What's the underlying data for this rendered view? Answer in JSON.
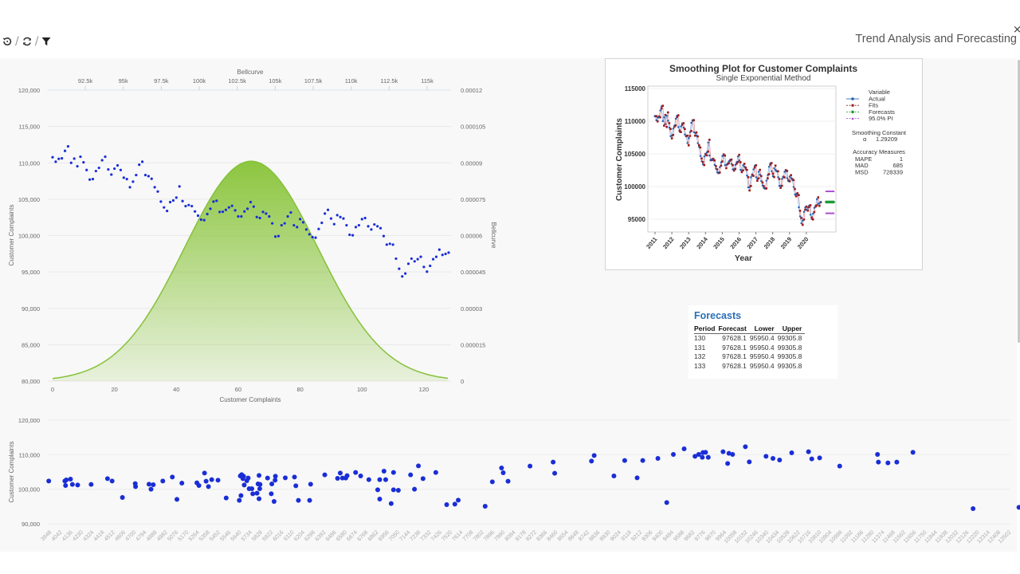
{
  "toolbar": {
    "icons": [
      "history-icon",
      "refresh-icon",
      "filter-icon"
    ],
    "separator": "/"
  },
  "header": {
    "title": "Trend Analysis and Forecasting",
    "close": "×"
  },
  "colors": {
    "points": "#1a2ed6",
    "bell": "#8cc63f",
    "actual": "#1f5fb4",
    "fits": "#9b1b1b",
    "forecasts": "#1f9a3a",
    "pi": "#a23cc8",
    "forecast_title": "#2a6fb5"
  },
  "chart_data": [
    {
      "type": "scatter",
      "xlabel": "Customer Complaints",
      "ylabel": "Customer Complaints",
      "y2label": "Bellcurve",
      "x2label": "Bellcurve",
      "xlim": [
        0,
        128
      ],
      "ylim": [
        80000,
        120000
      ],
      "y2lim": [
        0,
        0.00012
      ],
      "x2lim": [
        90350,
        116500
      ],
      "x_ticks": [
        "0",
        "20",
        "40",
        "60",
        "80",
        "100",
        "120"
      ],
      "y_ticks": [
        "120,000",
        "115,000",
        "110,000",
        "105,000",
        "100,000",
        "95,000",
        "90,000",
        "85,000",
        "80,000"
      ],
      "y2_ticks": [
        "0.00012",
        "0.000105",
        "0.00009",
        "0.000075",
        "0.00006",
        "0.000045",
        "0.00003",
        "0.000015",
        "0"
      ],
      "x2_ticks": [
        "92.5k",
        "95k",
        "97.5k",
        "100k",
        "102.5k",
        "105k",
        "107.5k",
        "110k",
        "112.5k",
        "115k"
      ],
      "grid": true,
      "bellcurve": {
        "type": "area",
        "mean": 103460,
        "sd": 4400
      },
      "values": [
        110770,
        110150,
        110550,
        110620,
        111640,
        112260,
        110000,
        110580,
        109530,
        110840,
        110070,
        109010,
        107700,
        107770,
        108870,
        109310,
        110360,
        110840,
        109090,
        108390,
        109200,
        109640,
        109010,
        107960,
        107770,
        106640,
        107410,
        108320,
        109740,
        110150,
        108320,
        108170,
        107810,
        106640,
        106060,
        104670,
        103870,
        103390,
        104600,
        104820,
        105220,
        106750,
        104740,
        104050,
        104200,
        104050,
        103320,
        102740,
        102190,
        102120,
        102960,
        103690,
        104670,
        104780,
        103250,
        103280,
        103540,
        103870,
        104090,
        103470,
        102630,
        102630,
        103320,
        103690,
        104600,
        103980,
        102550,
        102410,
        103250,
        103030,
        102630,
        101680,
        99860,
        99930,
        101420,
        101680,
        102630,
        103180,
        101420,
        101170,
        102260,
        101820,
        100840,
        100180,
        99780,
        99710,
        100910,
        101750,
        103030,
        103540,
        102340,
        101570,
        102810,
        102550,
        102340,
        101420,
        100110,
        100040,
        101170,
        101420,
        102260,
        102410,
        101280,
        100840,
        101530,
        101280,
        101020,
        99930,
        98760,
        98870,
        98760,
        96830,
        95440,
        94380,
        94780,
        96130,
        96830,
        96460,
        96750,
        97080,
        95690,
        95040,
        95840,
        96750,
        97080,
        98070,
        97340,
        97480,
        97660
      ]
    },
    {
      "type": "line",
      "title": "Smoothing Plot for Customer Complaints",
      "subtitle": "Single Exponential Method",
      "xlabel": "Year",
      "ylabel": "Customer Complaints",
      "y_ticks": [
        "115000",
        "110000",
        "105000",
        "100000",
        "95000"
      ],
      "x_ticks": [
        "2011",
        "2012",
        "2013",
        "2014",
        "2015",
        "2016",
        "2017",
        "2018",
        "2019",
        "2020"
      ],
      "ylim": [
        95000,
        115000
      ],
      "legend": {
        "title": "Variable",
        "entries": [
          "Actual",
          "Fits",
          "Forecasts",
          "95.0% PI"
        ],
        "placement": "right"
      },
      "smoothing": {
        "label": "Smoothing Constant",
        "symbol": "α",
        "value": "1.29209"
      },
      "accuracy": {
        "label": "Accuracy Measures",
        "rows": [
          [
            "MAPE",
            "1"
          ],
          [
            "MAD",
            "685"
          ],
          [
            "MSD",
            "728339"
          ]
        ]
      },
      "forecast": 97628.1,
      "lower": 95950.4,
      "upper": 99305.8
    },
    {
      "type": "scatter",
      "ylabel": "Customer Complaints",
      "ylim": [
        90000,
        120000
      ],
      "xlim": [
        3948,
        12502
      ],
      "y_ticks": [
        "120,000",
        "110,000",
        "100,000",
        "90,000"
      ],
      "x_ticks": [
        "3948",
        "4042",
        "4136",
        "4230",
        "4324",
        "4418",
        "4512",
        "4606",
        "4700",
        "4794",
        "4888",
        "4982",
        "5076",
        "5170",
        "5264",
        "5358",
        "5452",
        "5546",
        "5640",
        "5734",
        "5828",
        "5922",
        "6016",
        "6110",
        "6204",
        "6298",
        "6392",
        "6486",
        "6580",
        "6674",
        "6768",
        "6862",
        "6956",
        "7050",
        "7144",
        "7238",
        "7332",
        "7426",
        "7520",
        "7614",
        "7708",
        "7802",
        "7896",
        "7990",
        "8084",
        "8178",
        "8272",
        "8366",
        "8460",
        "8554",
        "8648",
        "8742",
        "8836",
        "8930",
        "9024",
        "9118",
        "9212",
        "9306",
        "9400",
        "9494",
        "9588",
        "9682",
        "9776",
        "9870",
        "9964",
        "10058",
        "10152",
        "10246",
        "10340",
        "10434",
        "10528",
        "10622",
        "10716",
        "10810",
        "10904",
        "10998",
        "11092",
        "11186",
        "11280",
        "11374",
        "11468",
        "11562",
        "11656",
        "11750",
        "11844",
        "11938",
        "12032",
        "12126",
        "12220",
        "12314",
        "12408",
        "12502"
      ],
      "points": [
        [
          3942,
          102385
        ],
        [
          4086,
          102385
        ],
        [
          4098,
          102690
        ],
        [
          4092,
          101080
        ],
        [
          4136,
          102920
        ],
        [
          4153,
          101380
        ],
        [
          4200,
          101230
        ],
        [
          4320,
          101380
        ],
        [
          4466,
          103080
        ],
        [
          4507,
          102385
        ],
        [
          4599,
          97620
        ],
        [
          4713,
          101620
        ],
        [
          4716,
          100770
        ],
        [
          4836,
          101460
        ],
        [
          4854,
          100000
        ],
        [
          4874,
          101310
        ],
        [
          4959,
          102385
        ],
        [
          5044,
          103540
        ],
        [
          5085,
          97080
        ],
        [
          5129,
          101770
        ],
        [
          5263,
          101850
        ],
        [
          5281,
          101080
        ],
        [
          5331,
          104690
        ],
        [
          5345,
          102310
        ],
        [
          5366,
          100770
        ],
        [
          5395,
          102770
        ],
        [
          5451,
          102620
        ],
        [
          5524,
          97460
        ],
        [
          5641,
          96770
        ],
        [
          5650,
          103850
        ],
        [
          5656,
          98150
        ],
        [
          5662,
          104230
        ],
        [
          5673,
          103080
        ],
        [
          5679,
          103770
        ],
        [
          5685,
          101230
        ],
        [
          5708,
          102460
        ],
        [
          5720,
          103230
        ],
        [
          5729,
          100150
        ],
        [
          5753,
          100150
        ],
        [
          5761,
          98690
        ],
        [
          5799,
          98850
        ],
        [
          5808,
          101540
        ],
        [
          5817,
          104000
        ],
        [
          5817,
          97230
        ],
        [
          5826,
          101380
        ],
        [
          5823,
          100150
        ],
        [
          5893,
          103230
        ],
        [
          5926,
          98690
        ],
        [
          5931,
          101540
        ],
        [
          5951,
          96460
        ],
        [
          5960,
          102620
        ],
        [
          5963,
          103770
        ],
        [
          6051,
          103310
        ],
        [
          6133,
          103540
        ],
        [
          6145,
          101000
        ],
        [
          6168,
          96770
        ],
        [
          6268,
          96770
        ],
        [
          6277,
          101460
        ],
        [
          6403,
          104150
        ],
        [
          6517,
          103150
        ],
        [
          6541,
          104690
        ],
        [
          6561,
          103230
        ],
        [
          6590,
          103230
        ],
        [
          6602,
          103920
        ],
        [
          6678,
          104850
        ],
        [
          6723,
          103850
        ],
        [
          6796,
          102770
        ],
        [
          6875,
          99850
        ],
        [
          6893,
          97150
        ],
        [
          6893,
          102770
        ],
        [
          6931,
          105230
        ],
        [
          6946,
          102770
        ],
        [
          6995,
          95850
        ],
        [
          7016,
          104850
        ],
        [
          7016,
          99850
        ],
        [
          7059,
          99690
        ],
        [
          7168,
          104150
        ],
        [
          7203,
          100000
        ],
        [
          7238,
          106770
        ],
        [
          7279,
          103080
        ],
        [
          7393,
          104850
        ],
        [
          7490,
          95540
        ],
        [
          7563,
          95690
        ],
        [
          7593,
          96850
        ],
        [
          7833,
          95080
        ],
        [
          7897,
          102150
        ],
        [
          7979,
          106150
        ],
        [
          7994,
          104770
        ],
        [
          8037,
          102310
        ],
        [
          8233,
          106690
        ],
        [
          8439,
          107850
        ],
        [
          8453,
          104620
        ],
        [
          8781,
          108150
        ],
        [
          8805,
          109770
        ],
        [
          8981,
          103850
        ],
        [
          9077,
          108310
        ],
        [
          9188,
          103310
        ],
        [
          9238,
          108310
        ],
        [
          9373,
          108920
        ],
        [
          9452,
          96150
        ],
        [
          9511,
          110080
        ],
        [
          9607,
          111690
        ],
        [
          9704,
          109540
        ],
        [
          9737,
          110080
        ],
        [
          9769,
          109230
        ],
        [
          9775,
          110620
        ],
        [
          9798,
          110690
        ],
        [
          9822,
          109230
        ],
        [
          9954,
          110850
        ],
        [
          9995,
          107460
        ],
        [
          10006,
          110380
        ],
        [
          10039,
          110080
        ],
        [
          10153,
          112310
        ],
        [
          10188,
          107920
        ],
        [
          10337,
          109540
        ],
        [
          10399,
          108920
        ],
        [
          10458,
          108460
        ],
        [
          10566,
          110540
        ],
        [
          10716,
          110850
        ],
        [
          10745,
          108770
        ],
        [
          10815,
          109080
        ],
        [
          10994,
          106690
        ],
        [
          11331,
          110080
        ],
        [
          11339,
          107850
        ],
        [
          11424,
          107620
        ],
        [
          11503,
          107850
        ],
        [
          11647,
          110690
        ],
        [
          12183,
          94380
        ],
        [
          12592,
          94770
        ]
      ]
    }
  ],
  "forecasts_table": {
    "title": "Forecasts",
    "columns": [
      "Period",
      "Forecast",
      "Lower",
      "Upper"
    ],
    "rows": [
      [
        "130",
        "97628.1",
        "95950.4",
        "99305.8"
      ],
      [
        "131",
        "97628.1",
        "95950.4",
        "99305.8"
      ],
      [
        "132",
        "97628.1",
        "95950.4",
        "99305.8"
      ],
      [
        "133",
        "97628.1",
        "95950.4",
        "99305.8"
      ]
    ]
  }
}
